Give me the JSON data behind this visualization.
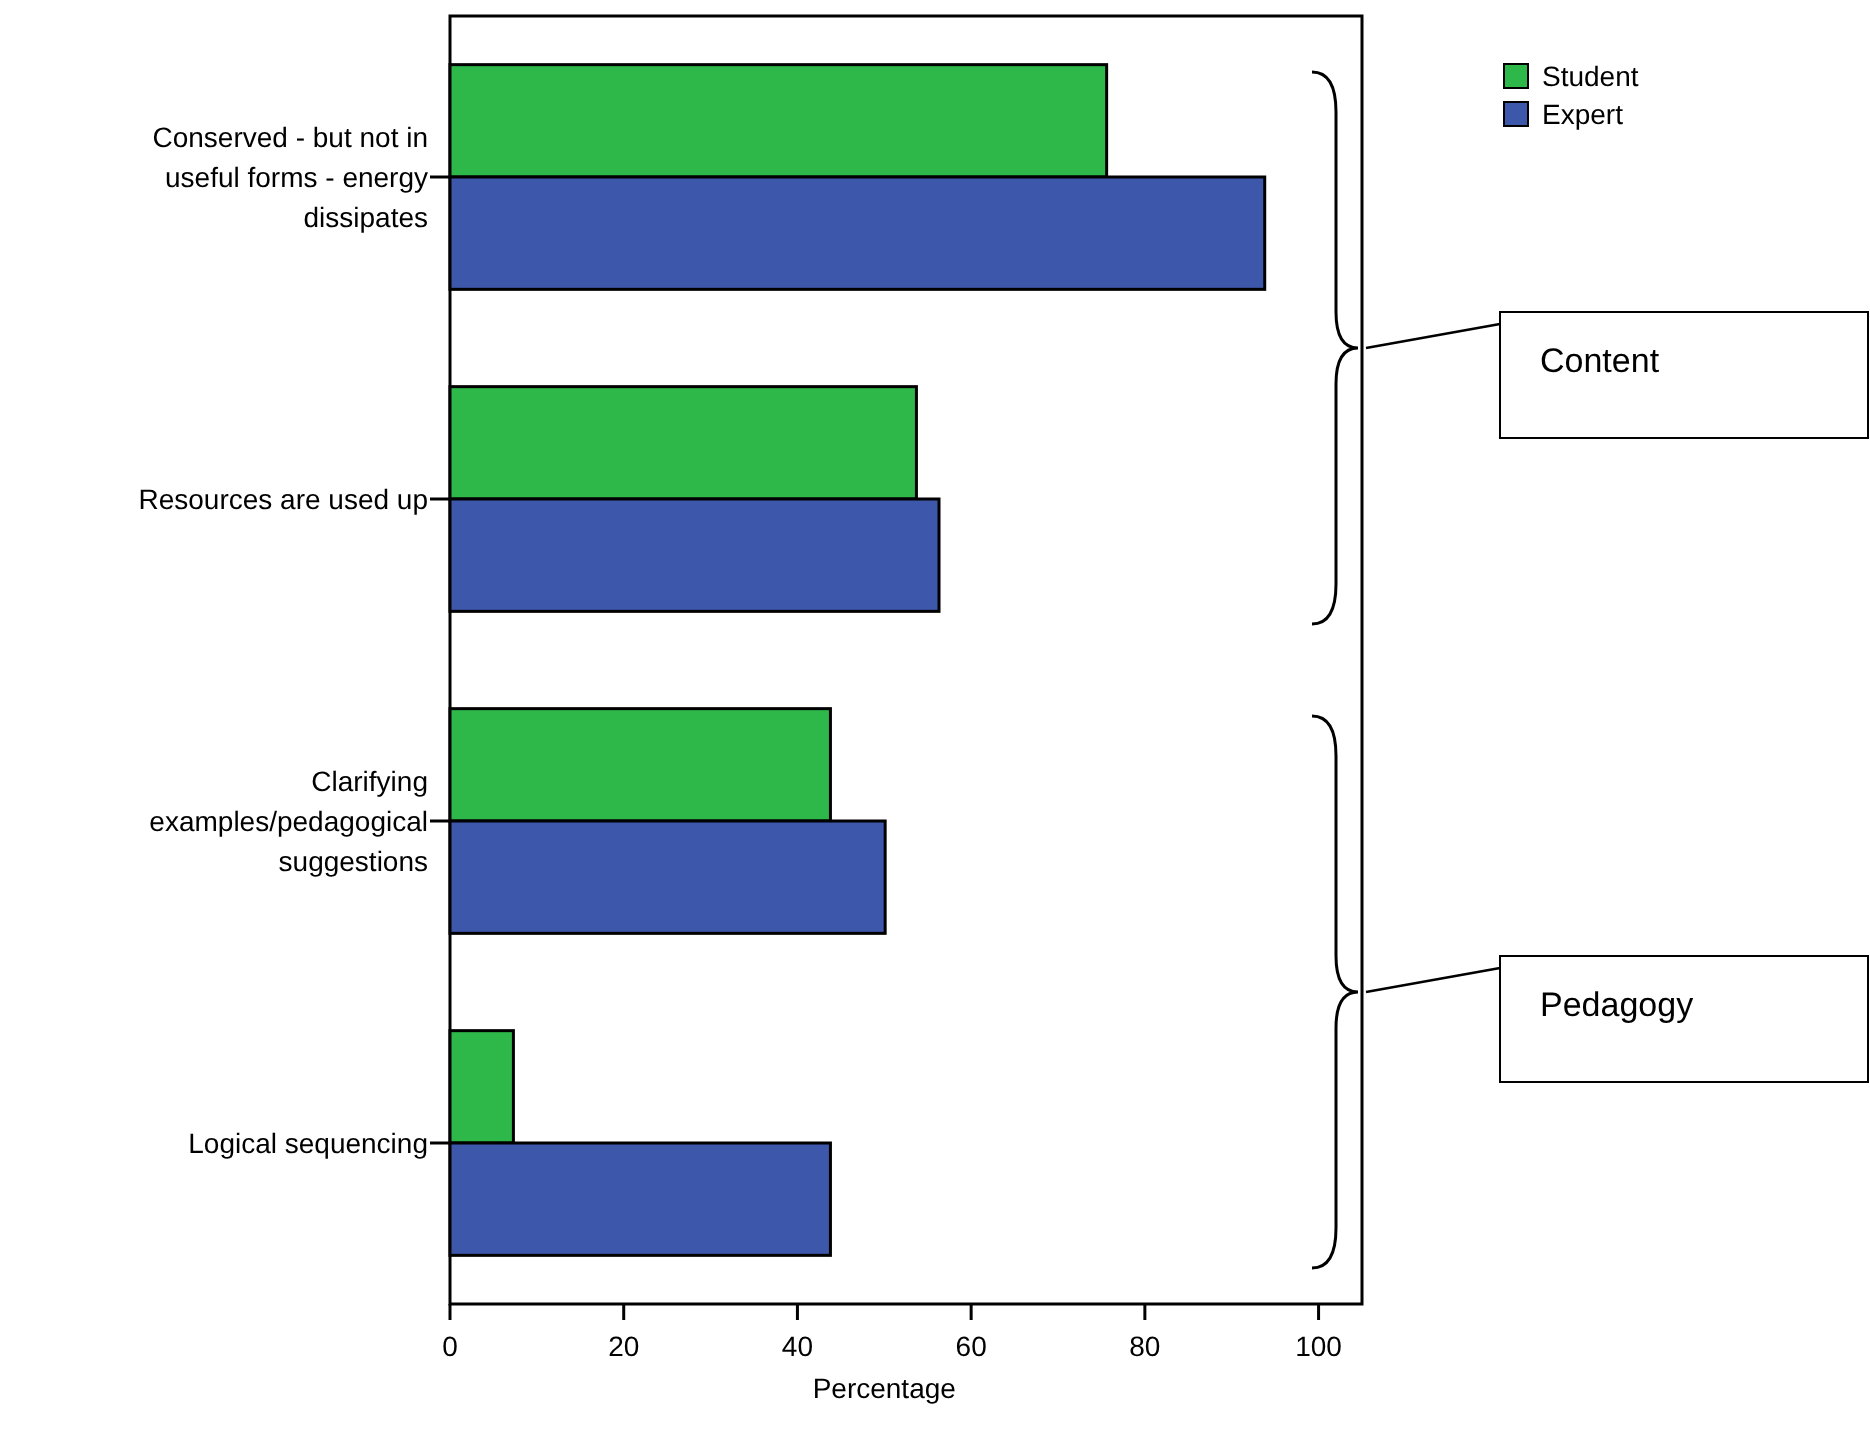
{
  "chart_data": {
    "type": "bar",
    "orientation": "horizontal",
    "xlabel": "Percentage",
    "categories": [
      "Conserved - but not in useful forms - energy dissipates",
      "Resources are used up",
      "Clarifying examples/pedagogical suggestions",
      "Logical sequencing"
    ],
    "series": [
      {
        "name": "Student",
        "color": "#2eb84a",
        "values": [
          75.6,
          53.7,
          43.8,
          7.3
        ]
      },
      {
        "name": "Expert",
        "color": "#3d58aa",
        "values": [
          93.8,
          56.3,
          50.1,
          43.8
        ]
      }
    ],
    "xlim": [
      0,
      105
    ],
    "xticks": [
      0,
      20,
      40,
      60,
      80,
      100
    ],
    "grid": false,
    "legend": "top right",
    "annotations": [
      "Content",
      "Pedagogy"
    ]
  }
}
